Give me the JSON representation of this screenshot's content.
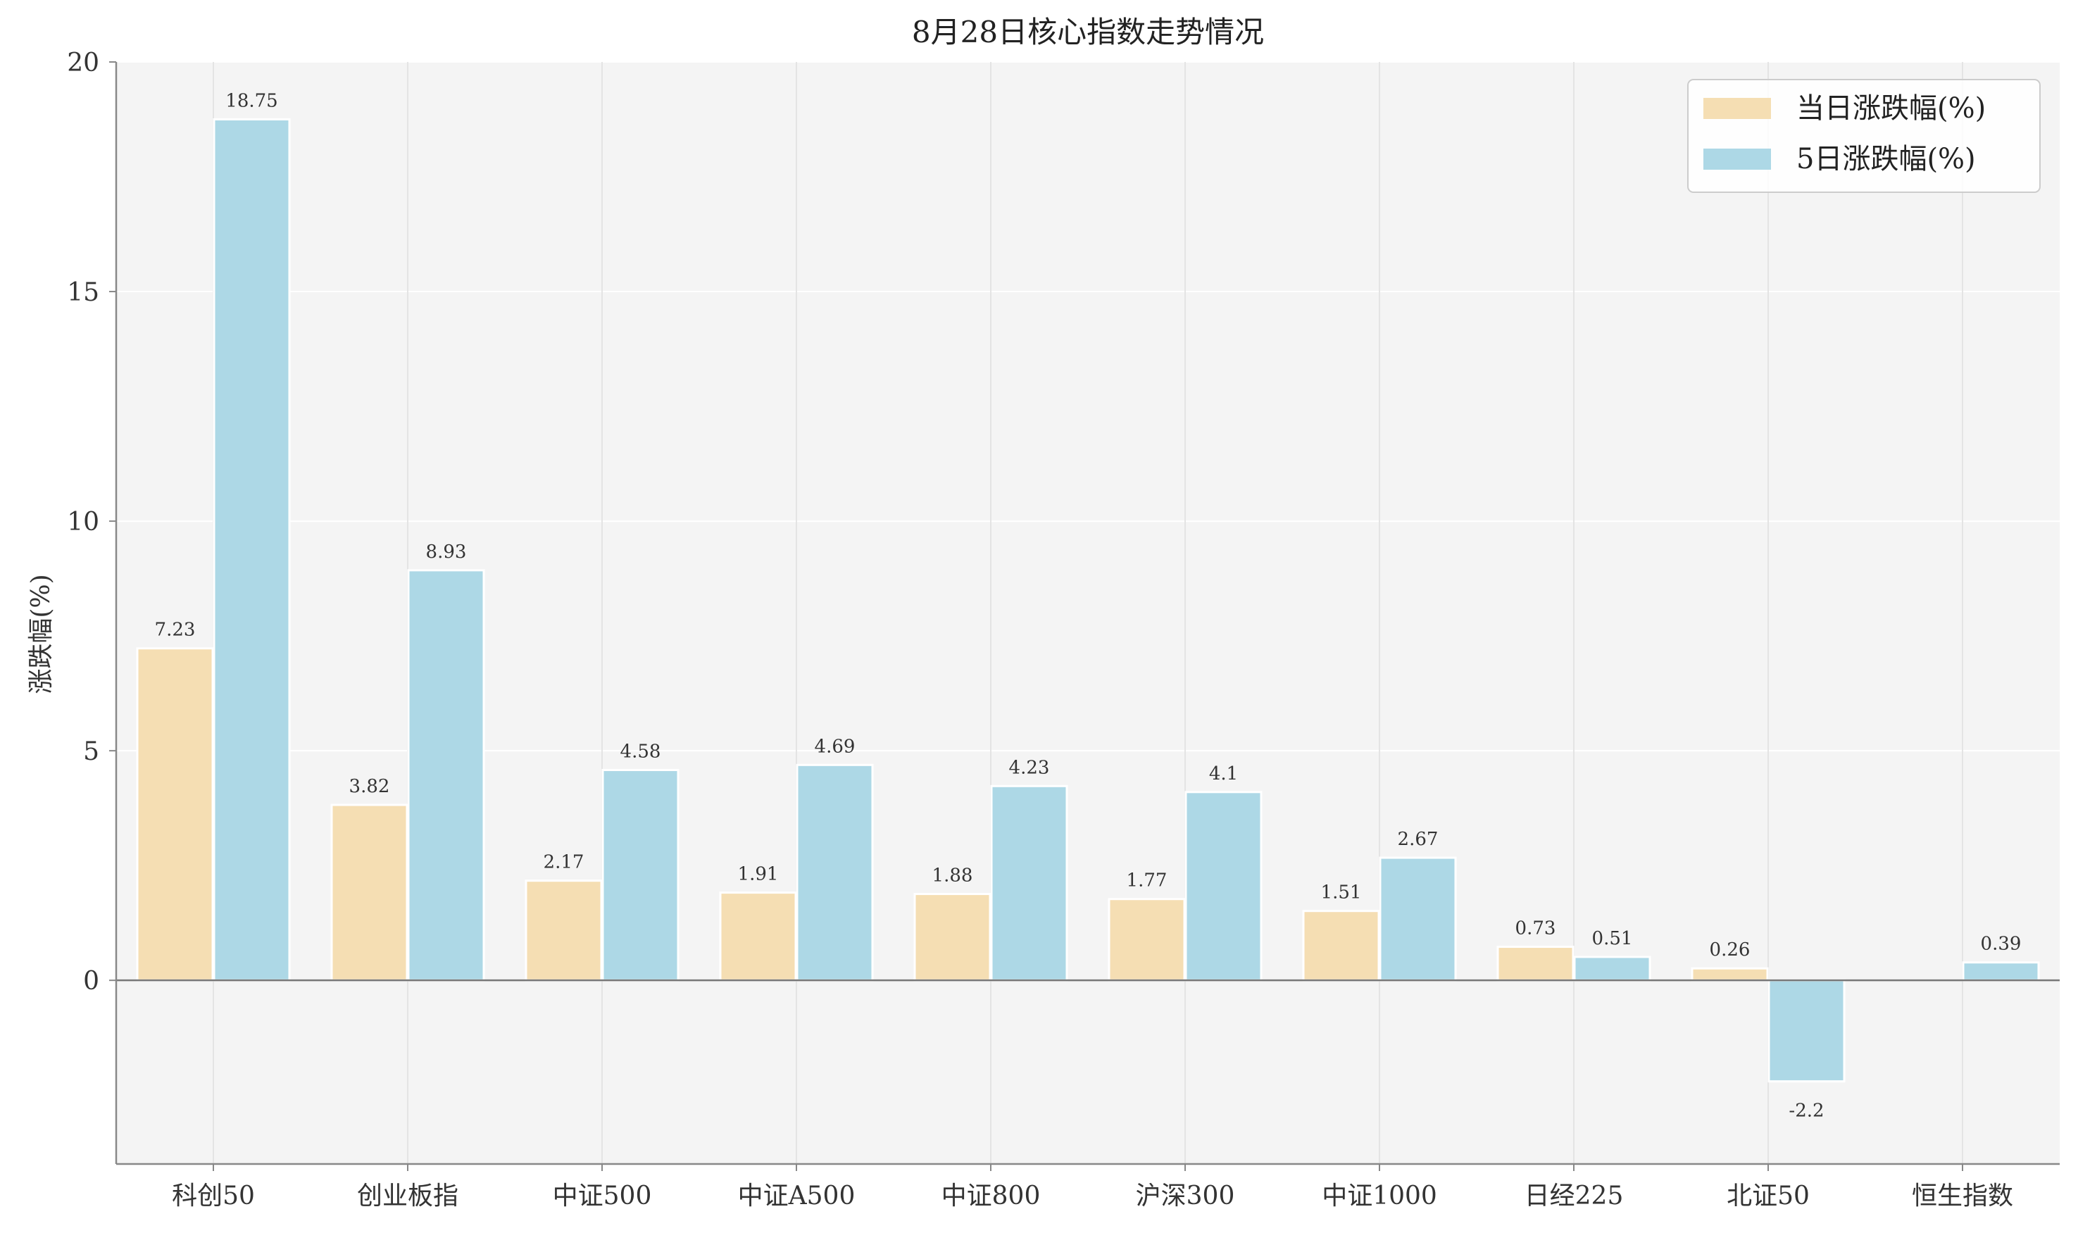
{
  "chart_data": {
    "type": "bar",
    "title": "8月28日核心指数走势情况",
    "ylabel": "涨跌幅(%)",
    "xlabel": "",
    "ylim": [
      -4,
      20
    ],
    "yticks": [
      0,
      5,
      10,
      15,
      20
    ],
    "grid": true,
    "legend_position": "top-right",
    "categories": [
      "科创50",
      "创业板指",
      "中证500",
      "中证A500",
      "中证800",
      "沪深300",
      "中证1000",
      "日经225",
      "北证50",
      "恒生指数"
    ],
    "series": [
      {
        "name": "当日涨跌幅(%)",
        "color": "#F5DEB3",
        "values": [
          7.23,
          3.82,
          2.17,
          1.91,
          1.88,
          1.77,
          1.51,
          0.73,
          0.26,
          null
        ],
        "labels": [
          "7.23",
          "3.82",
          "2.17",
          "1.91",
          "1.88",
          "1.77",
          "1.51",
          "0.73",
          "0.26",
          ""
        ]
      },
      {
        "name": "5日涨跌幅(%)",
        "color": "#ADD8E6",
        "values": [
          18.75,
          8.93,
          4.58,
          4.69,
          4.23,
          4.1,
          2.67,
          0.51,
          -2.2,
          0.39
        ],
        "labels": [
          "18.75",
          "8.93",
          "4.58",
          "4.69",
          "4.23",
          "4.1",
          "2.67",
          "0.51",
          "-2.2",
          "0.39"
        ]
      }
    ]
  }
}
